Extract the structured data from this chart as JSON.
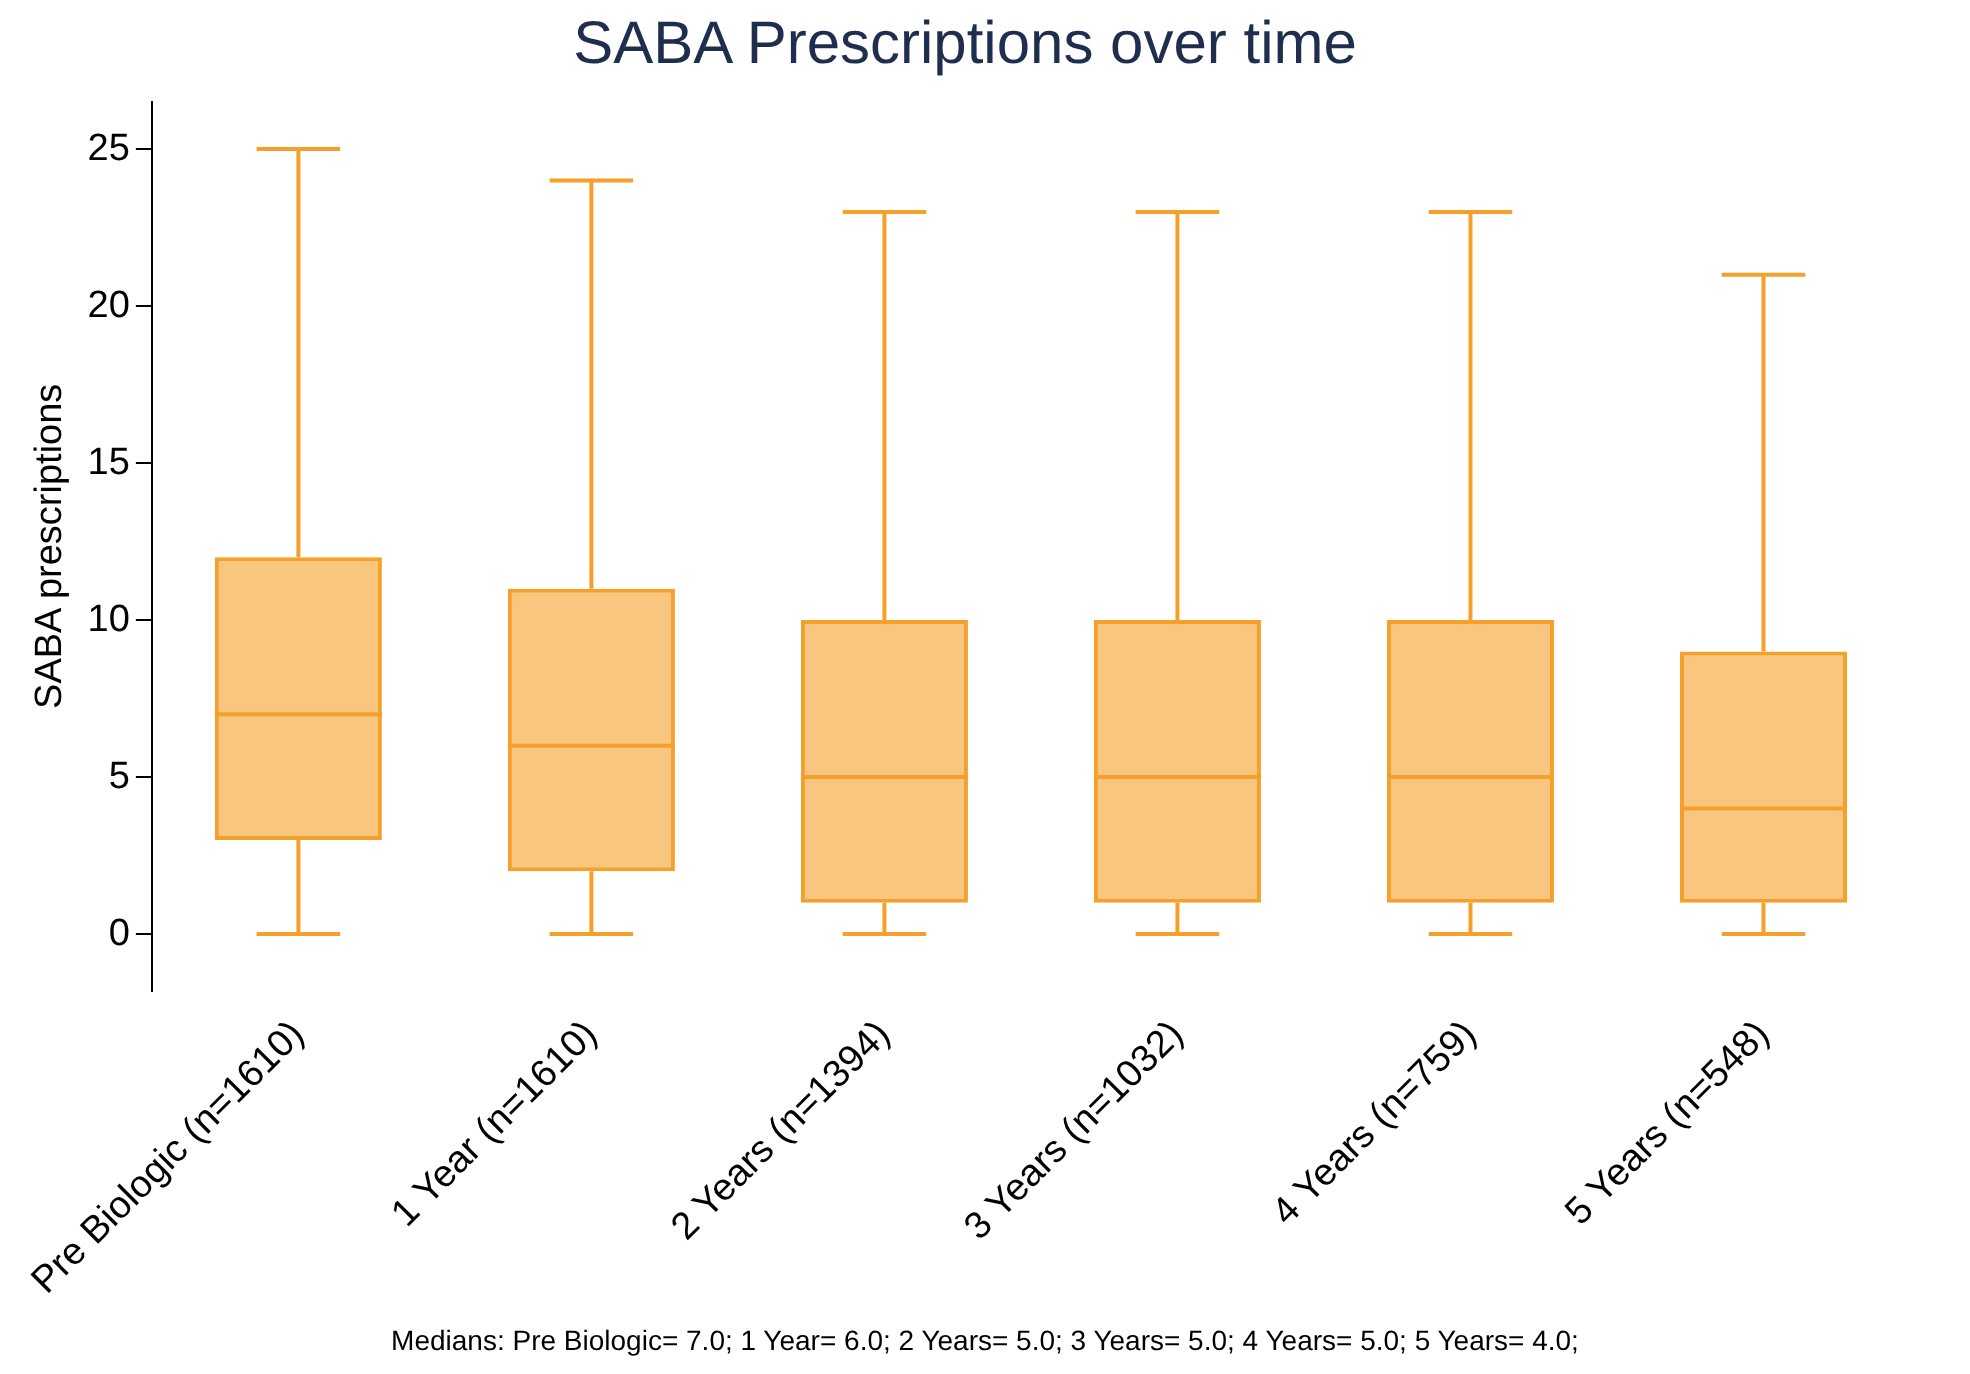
{
  "chart_data": {
    "type": "box",
    "title": "SABA Prescriptions over time",
    "ylabel": "SABA prescriptions",
    "categories": [
      "Pre Biologic (n=1610)",
      "1 Year (n=1610)",
      "2 Years (n=1394)",
      "3 Years (n=1032)",
      "4 Years (n=759)",
      "5 Years (n=548)"
    ],
    "boxes": [
      {
        "low": 0,
        "q1": 3,
        "median": 7,
        "q3": 12,
        "high": 25
      },
      {
        "low": 0,
        "q1": 2,
        "median": 6,
        "q3": 11,
        "high": 24
      },
      {
        "low": 0,
        "q1": 1,
        "median": 5,
        "q3": 10,
        "high": 23
      },
      {
        "low": 0,
        "q1": 1,
        "median": 5,
        "q3": 10,
        "high": 23
      },
      {
        "low": 0,
        "q1": 1,
        "median": 5,
        "q3": 10,
        "high": 23
      },
      {
        "low": 0,
        "q1": 1,
        "median": 4,
        "q3": 9,
        "high": 21
      }
    ],
    "color": "#f5a02a",
    "ylim": [
      -1.8,
      26.5
    ],
    "yticks": [
      0,
      5,
      10,
      15,
      20,
      25
    ],
    "grid": false,
    "annotations": [
      "Medians: Pre Biologic= 7.0; 1 Year= 6.0; 2 Years= 5.0; 3 Years= 5.0; 4 Years= 5.0; 5 Years= 4.0;"
    ]
  }
}
